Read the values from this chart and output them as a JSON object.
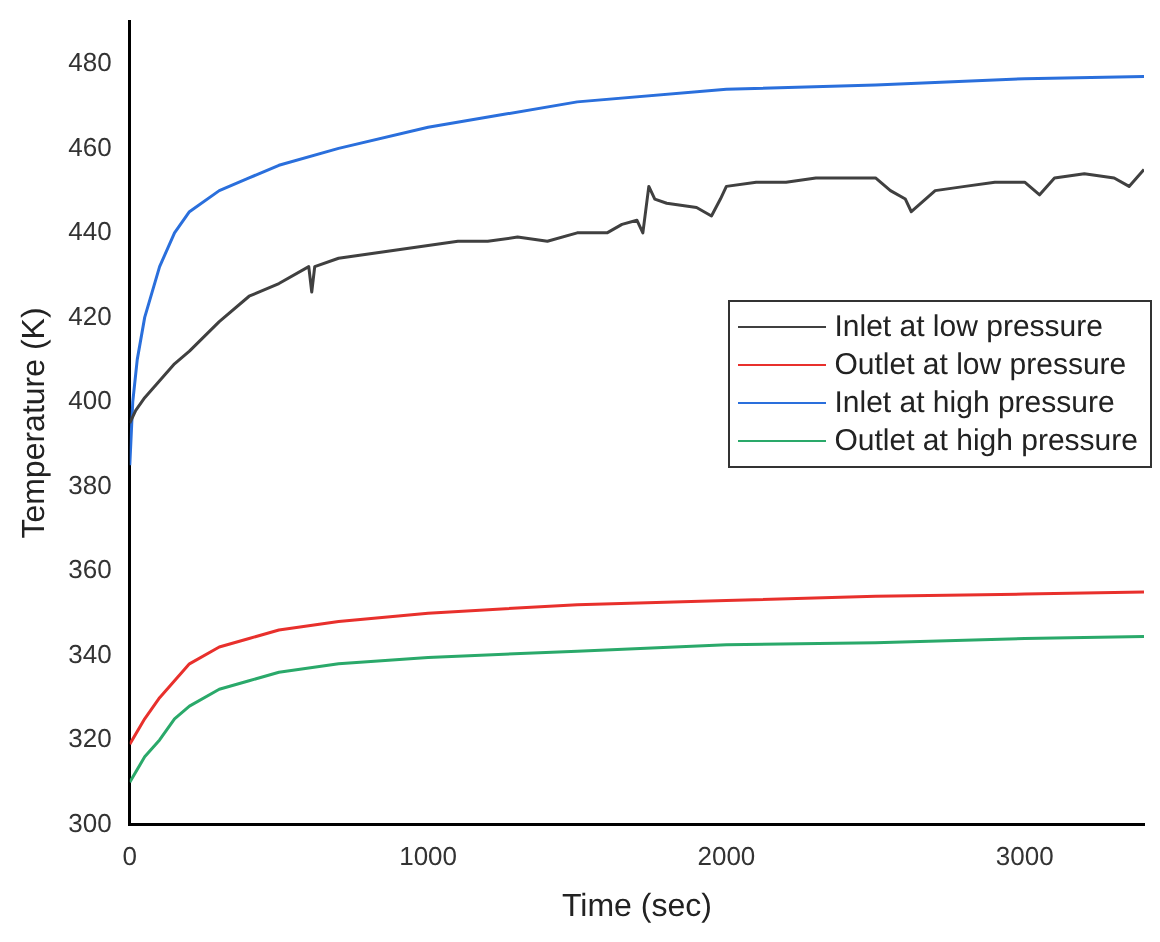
{
  "chart_data": {
    "type": "line",
    "xlabel": "Time (sec)",
    "ylabel": "Temperature (K)",
    "xlim": [
      0,
      3400
    ],
    "xticks": [
      0,
      1000,
      2000,
      3000
    ],
    "ylim": [
      300,
      490
    ],
    "yticks": [
      300,
      320,
      340,
      360,
      380,
      400,
      420,
      440,
      460,
      480
    ],
    "grid": false,
    "legend": "right",
    "marker": "none",
    "line_style": "solid",
    "series": [
      {
        "name": "Inlet at low pressure",
        "color": "#404040",
        "x": [
          0,
          20,
          50,
          100,
          150,
          200,
          300,
          400,
          500,
          600,
          610,
          620,
          700,
          800,
          900,
          1000,
          1100,
          1200,
          1300,
          1400,
          1500,
          1600,
          1650,
          1700,
          1720,
          1740,
          1760,
          1800,
          1900,
          1950,
          1980,
          2000,
          2100,
          2200,
          2300,
          2400,
          2500,
          2550,
          2600,
          2620,
          2700,
          2800,
          2900,
          3000,
          3050,
          3100,
          3200,
          3300,
          3350,
          3400
        ],
        "values": [
          395,
          398,
          401,
          405,
          409,
          412,
          419,
          425,
          428,
          432,
          426,
          432,
          434,
          435,
          436,
          437,
          438,
          438,
          439,
          438,
          440,
          440,
          442,
          443,
          440,
          451,
          448,
          447,
          446,
          444,
          448,
          451,
          452,
          452,
          453,
          453,
          453,
          450,
          448,
          445,
          450,
          451,
          452,
          452,
          449,
          453,
          454,
          453,
          451,
          455
        ]
      },
      {
        "name": "Outlet at low pressure",
        "color": "#e8302c",
        "x": [
          0,
          50,
          100,
          150,
          200,
          300,
          400,
          500,
          700,
          1000,
          1500,
          2000,
          2500,
          3000,
          3400
        ],
        "values": [
          319,
          325,
          330,
          334,
          338,
          342,
          344,
          346,
          348,
          350,
          352,
          353,
          354,
          354.5,
          355
        ]
      },
      {
        "name": "Inlet at high pressure",
        "color": "#2a6fdc",
        "x": [
          0,
          10,
          25,
          50,
          100,
          150,
          200,
          300,
          400,
          500,
          700,
          1000,
          1250,
          1500,
          2000,
          2500,
          3000,
          3400
        ],
        "values": [
          385,
          400,
          410,
          420,
          432,
          440,
          445,
          450,
          453,
          456,
          460,
          465,
          468,
          471,
          474,
          475,
          476.5,
          477
        ]
      },
      {
        "name": "Outlet at high pressure",
        "color": "#2aa96a",
        "x": [
          0,
          50,
          100,
          150,
          200,
          300,
          400,
          500,
          700,
          1000,
          1500,
          2000,
          2500,
          3000,
          3400
        ],
        "values": [
          310,
          316,
          320,
          325,
          328,
          332,
          334,
          336,
          338,
          339.5,
          341,
          342.5,
          343,
          344,
          344.5
        ]
      }
    ]
  }
}
